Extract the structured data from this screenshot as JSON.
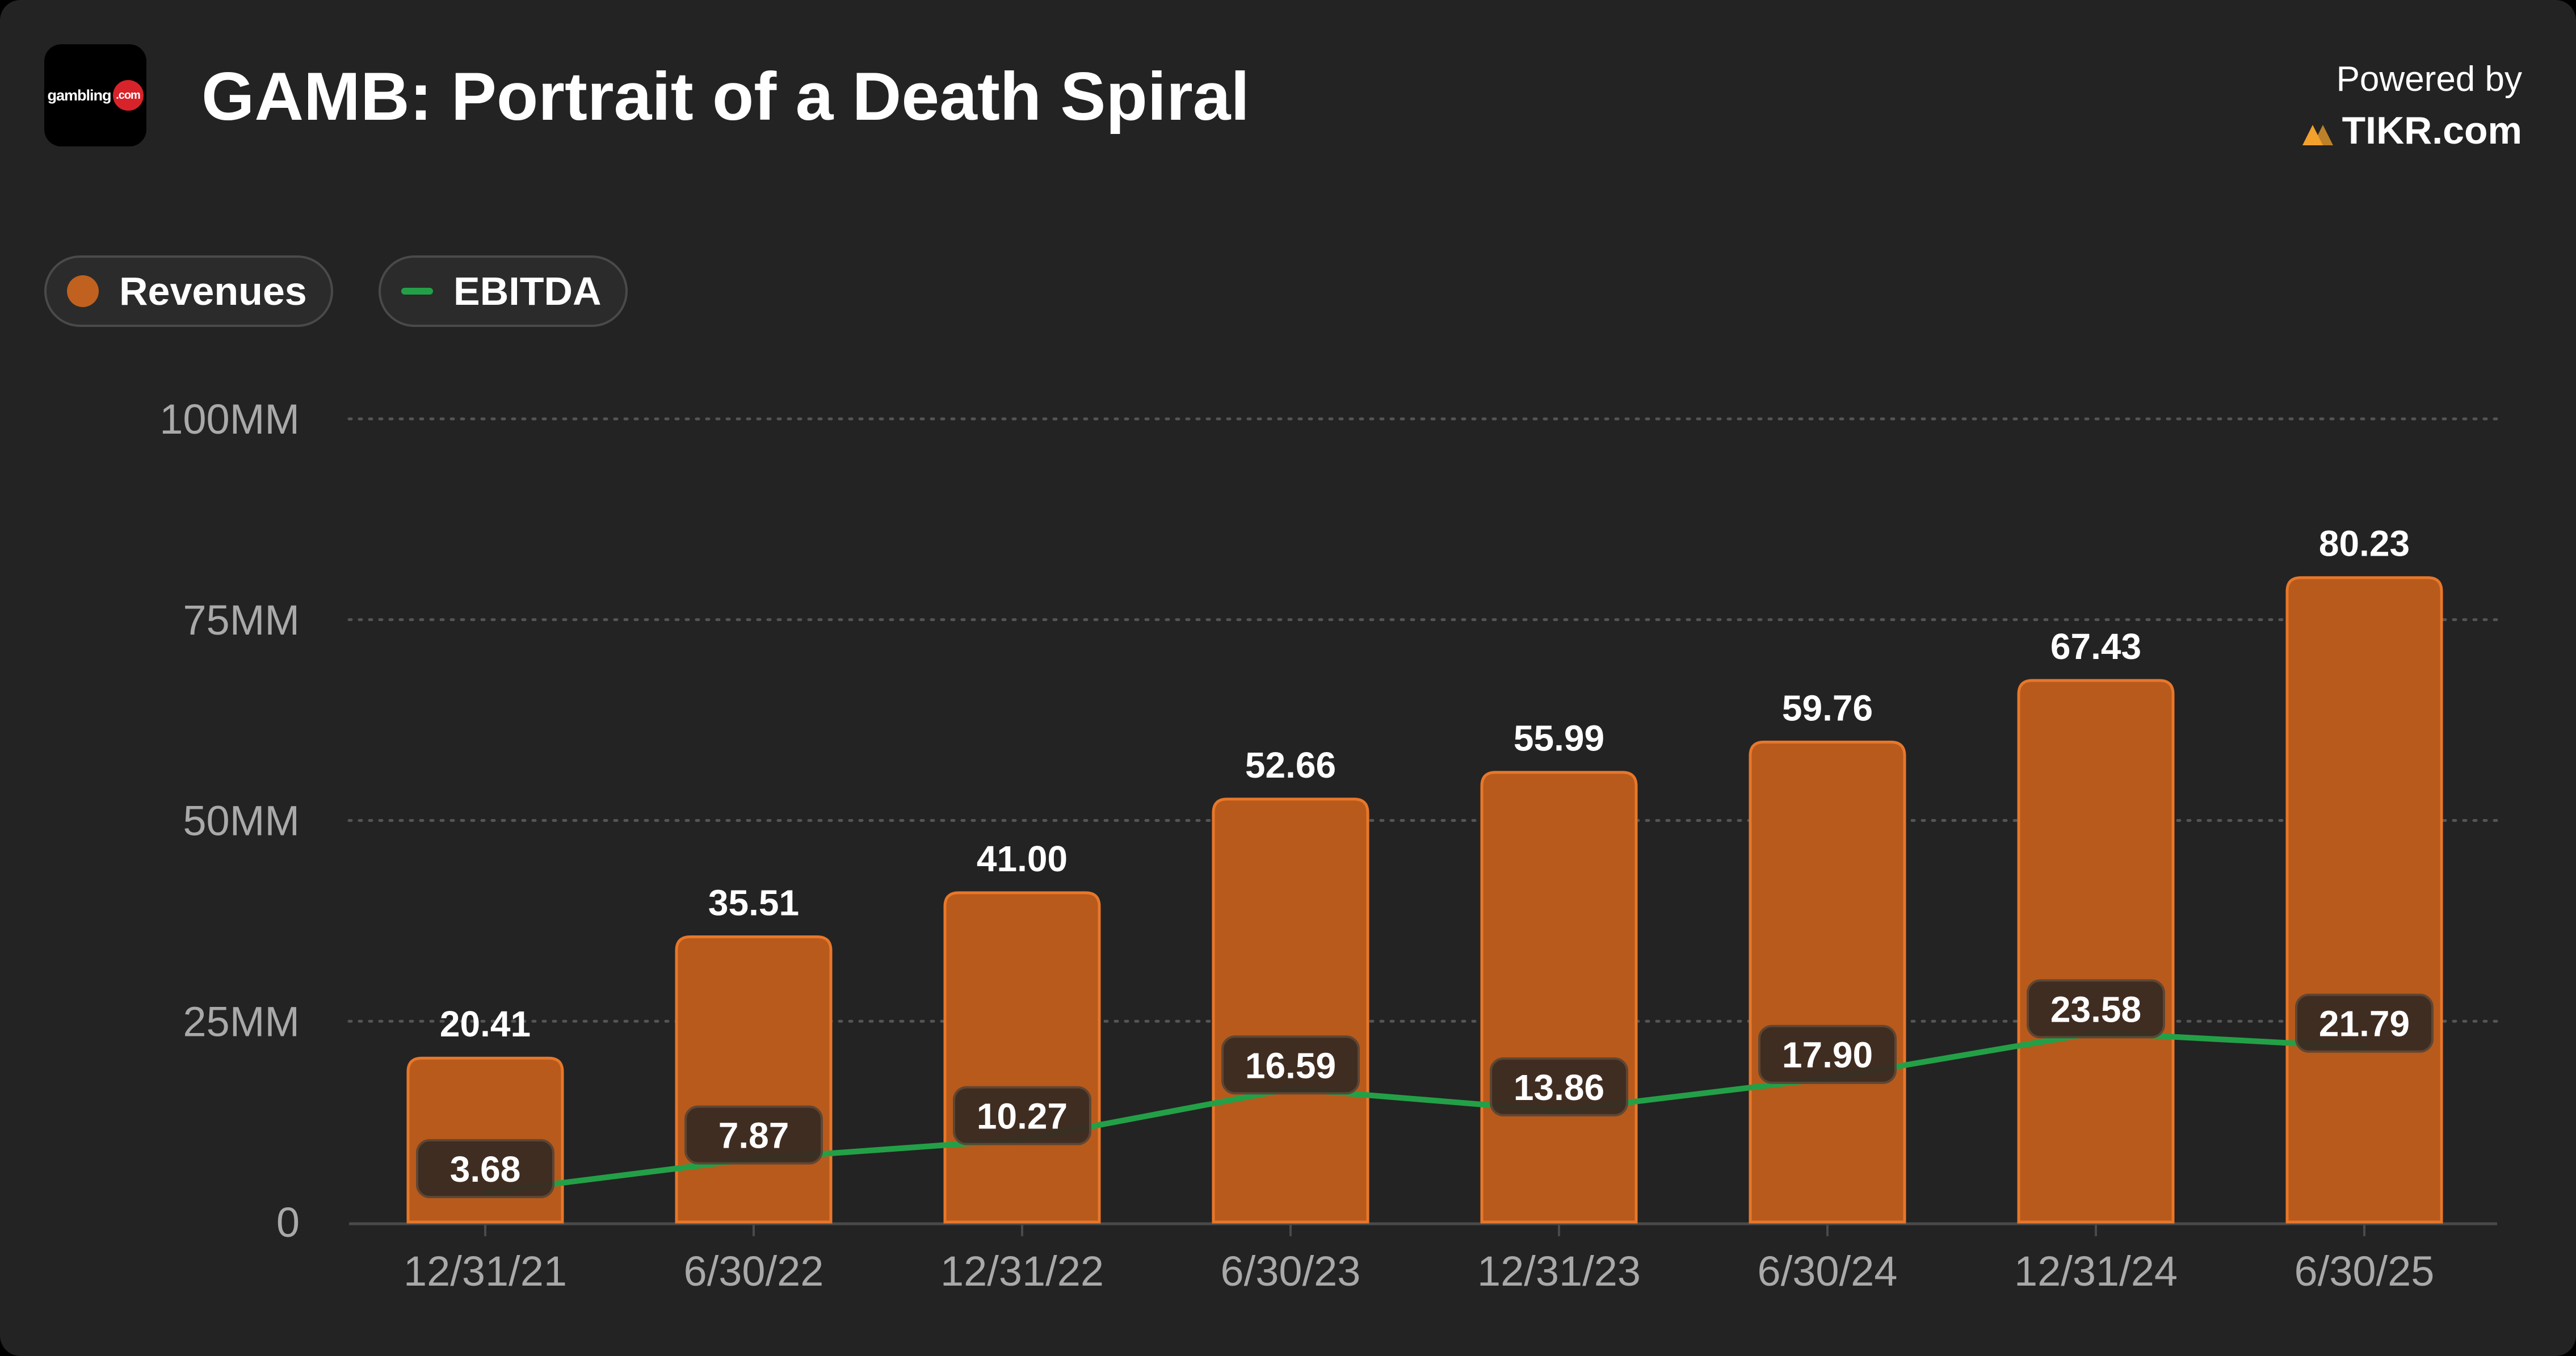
{
  "header": {
    "title": "GAMB: Portrait of a Death Spiral",
    "logo_text": "gambling",
    "logo_badge": ".com",
    "powered_by": "Powered by",
    "tikr": "TIKR.com"
  },
  "legend": {
    "revenues_label": "Revenues",
    "ebitda_label": "EBITDA"
  },
  "colors": {
    "revenue_bar": "#b85a1b",
    "revenue_bar_border": "#e8772a",
    "ebitda_line": "#23a047",
    "background": "#232323",
    "grid": "#555555",
    "axis_text": "#a9a9a9",
    "label_box": "#3a2b22"
  },
  "chart_data": {
    "type": "bar",
    "title": "GAMB: Portrait of a Death Spiral",
    "xlabel": "",
    "ylabel": "",
    "ylim": [
      0,
      100
    ],
    "y_ticks": [
      0,
      25,
      50,
      75,
      100
    ],
    "y_tick_labels": [
      "0",
      "25MM",
      "50MM",
      "75MM",
      "100MM"
    ],
    "grid": true,
    "legend_position": "top-left",
    "categories": [
      "12/31/21",
      "6/30/22",
      "12/31/22",
      "6/30/23",
      "12/31/23",
      "6/30/24",
      "12/31/24",
      "6/30/25"
    ],
    "series": [
      {
        "name": "Revenues",
        "type": "bar",
        "values": [
          20.41,
          35.51,
          41.0,
          52.66,
          55.99,
          59.76,
          67.43,
          80.23
        ],
        "labels": [
          "20.41",
          "35.51",
          "41.00",
          "52.66",
          "55.99",
          "59.76",
          "67.43",
          "80.23"
        ]
      },
      {
        "name": "EBITDA",
        "type": "line",
        "values": [
          3.68,
          7.87,
          10.27,
          16.59,
          13.86,
          17.9,
          23.58,
          21.79
        ],
        "labels": [
          "3.68",
          "7.87",
          "10.27",
          "16.59",
          "13.86",
          "17.90",
          "23.58",
          "21.79"
        ]
      }
    ]
  }
}
